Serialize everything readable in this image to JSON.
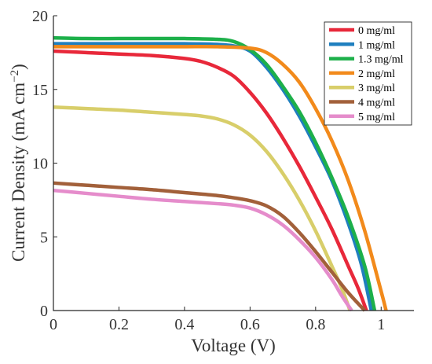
{
  "chart_data": {
    "type": "line",
    "xlabel": "Voltage (V)",
    "ylabel": "Current Density (mA cm",
    "ylabel_sup": "−2",
    "ylabel_close": ")",
    "xlim": [
      0,
      1.1
    ],
    "ylim": [
      0,
      20
    ],
    "xticks": [
      0,
      0.2,
      0.4,
      0.6,
      0.8,
      1
    ],
    "xtick_labels": [
      "0",
      "0.2",
      "0.4",
      "0.6",
      "0.8",
      "1"
    ],
    "yticks": [
      0,
      5,
      10,
      15,
      20
    ],
    "ytick_labels": [
      "0",
      "5",
      "10",
      "15",
      "20"
    ],
    "grid": false,
    "legend_position": "top-right",
    "series": [
      {
        "name": "0 mg/ml",
        "color": "#E8283A",
        "x": [
          0,
          0.1,
          0.2,
          0.3,
          0.4,
          0.45,
          0.5,
          0.55,
          0.6,
          0.65,
          0.7,
          0.75,
          0.8,
          0.85,
          0.9,
          0.93,
          0.955
        ],
        "y": [
          17.6,
          17.5,
          17.4,
          17.3,
          17.1,
          16.9,
          16.5,
          15.9,
          14.8,
          13.4,
          11.7,
          9.8,
          7.7,
          5.5,
          3.0,
          1.5,
          0
        ]
      },
      {
        "name": "1 mg/ml",
        "color": "#1F7FBF",
        "x": [
          0,
          0.1,
          0.2,
          0.3,
          0.4,
          0.5,
          0.55,
          0.6,
          0.65,
          0.7,
          0.75,
          0.8,
          0.85,
          0.9,
          0.94,
          0.97
        ],
        "y": [
          18.1,
          18.1,
          18.1,
          18.1,
          18.1,
          18.05,
          17.95,
          17.6,
          16.5,
          15.0,
          13.2,
          11.1,
          8.8,
          5.9,
          3.1,
          0
        ]
      },
      {
        "name": "1.3 mg/ml",
        "color": "#1DB04A",
        "x": [
          0,
          0.1,
          0.2,
          0.3,
          0.4,
          0.5,
          0.55,
          0.6,
          0.65,
          0.7,
          0.75,
          0.8,
          0.85,
          0.9,
          0.95,
          0.98
        ],
        "y": [
          18.5,
          18.45,
          18.45,
          18.45,
          18.45,
          18.4,
          18.25,
          17.7,
          16.7,
          15.2,
          13.5,
          11.4,
          9.0,
          6.3,
          3.0,
          0
        ]
      },
      {
        "name": "2 mg/ml",
        "color": "#F28A1B",
        "x": [
          0,
          0.1,
          0.2,
          0.3,
          0.4,
          0.5,
          0.6,
          0.65,
          0.7,
          0.75,
          0.8,
          0.85,
          0.9,
          0.95,
          1.0,
          1.015
        ],
        "y": [
          17.9,
          17.9,
          17.9,
          17.9,
          17.9,
          17.9,
          17.8,
          17.5,
          16.7,
          15.5,
          13.7,
          11.5,
          8.8,
          5.4,
          1.3,
          0
        ]
      },
      {
        "name": "3 mg/ml",
        "color": "#D8CE6A",
        "x": [
          0,
          0.1,
          0.2,
          0.3,
          0.4,
          0.45,
          0.5,
          0.55,
          0.6,
          0.65,
          0.7,
          0.75,
          0.8,
          0.85,
          0.88,
          0.905
        ],
        "y": [
          13.8,
          13.7,
          13.6,
          13.45,
          13.3,
          13.2,
          13.0,
          12.6,
          11.9,
          10.8,
          9.3,
          7.5,
          5.4,
          3.0,
          1.5,
          0
        ]
      },
      {
        "name": "4 mg/ml",
        "color": "#A2603A",
        "x": [
          0,
          0.1,
          0.2,
          0.3,
          0.4,
          0.5,
          0.55,
          0.6,
          0.65,
          0.7,
          0.75,
          0.8,
          0.85,
          0.9,
          0.95
        ],
        "y": [
          8.65,
          8.5,
          8.35,
          8.2,
          8.0,
          7.8,
          7.65,
          7.45,
          7.1,
          6.4,
          5.3,
          4.0,
          2.6,
          1.2,
          0
        ]
      },
      {
        "name": "5 mg/ml",
        "color": "#E58CCB",
        "x": [
          0,
          0.1,
          0.2,
          0.3,
          0.4,
          0.5,
          0.55,
          0.6,
          0.65,
          0.7,
          0.75,
          0.8,
          0.85,
          0.88,
          0.91
        ],
        "y": [
          8.15,
          7.95,
          7.75,
          7.55,
          7.4,
          7.25,
          7.15,
          6.95,
          6.5,
          5.8,
          4.8,
          3.6,
          2.1,
          1.0,
          0
        ]
      }
    ]
  }
}
